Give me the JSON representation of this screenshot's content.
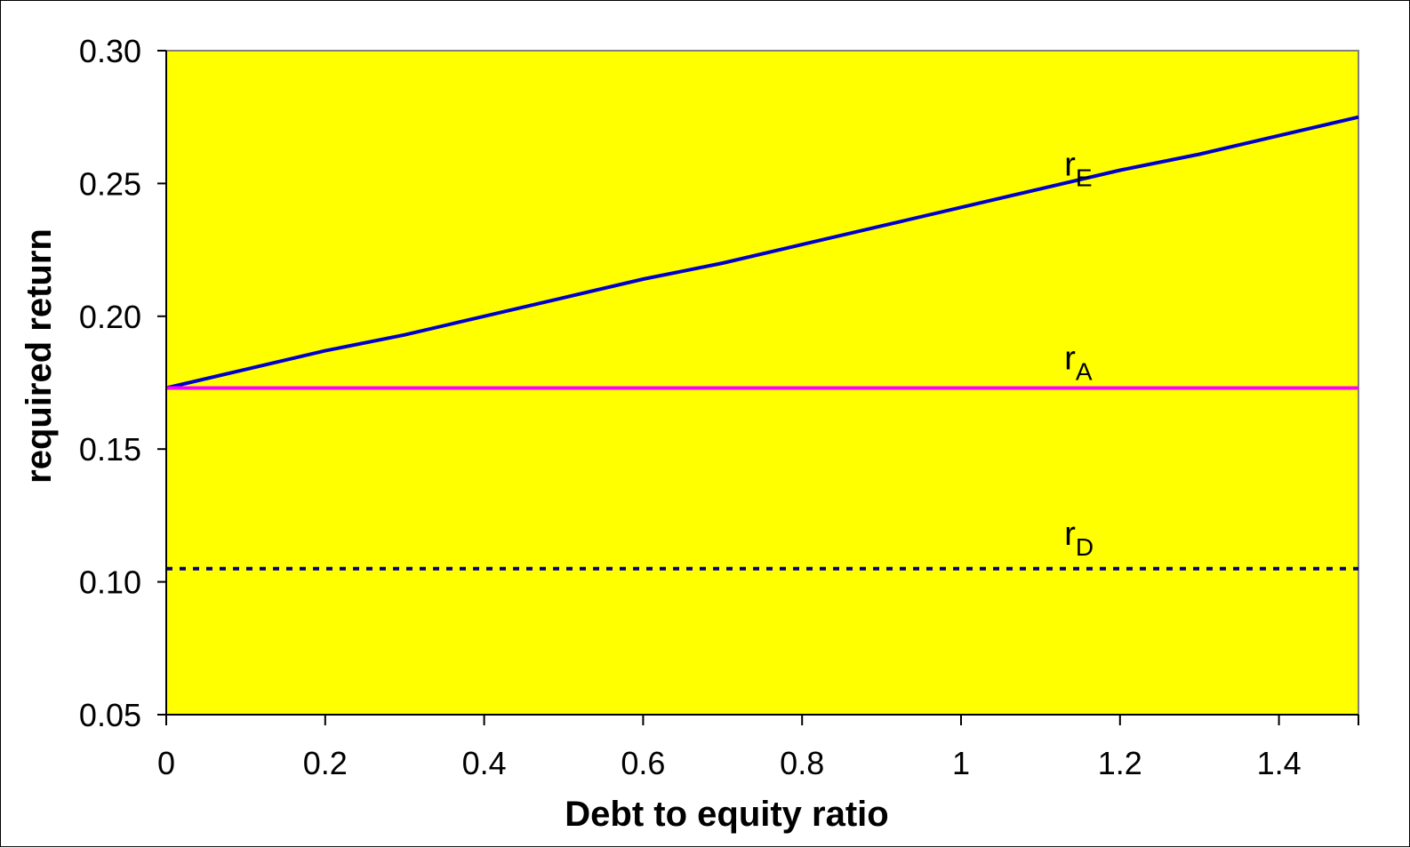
{
  "chart_data": {
    "type": "line",
    "title": "",
    "xlabel": "Debt to equity ratio",
    "ylabel": "required return",
    "xlim": [
      0,
      1.5
    ],
    "ylim": [
      0.05,
      0.3
    ],
    "xticks": [
      "0",
      "0.2",
      "0.4",
      "0.6",
      "0.8",
      "1",
      "1.2",
      "1.4"
    ],
    "xtick_values": [
      0,
      0.2,
      0.4,
      0.6,
      0.8,
      1.0,
      1.2,
      1.4
    ],
    "yticks": [
      "0.05",
      "0.10",
      "0.15",
      "0.20",
      "0.25",
      "0.30"
    ],
    "ytick_values": [
      0.05,
      0.1,
      0.15,
      0.2,
      0.25,
      0.3
    ],
    "grid": false,
    "plot_background": "#ffff00",
    "series": [
      {
        "name_main": "r",
        "name_sub": "E",
        "color": "#0000cc",
        "style": "solid",
        "x": [
          0,
          0.1,
          0.2,
          0.3,
          0.4,
          0.5,
          0.6,
          0.7,
          0.8,
          0.9,
          1.0,
          1.1,
          1.2,
          1.3,
          1.4,
          1.5
        ],
        "y": [
          0.173,
          0.18,
          0.187,
          0.193,
          0.2,
          0.207,
          0.214,
          0.22,
          0.227,
          0.234,
          0.241,
          0.248,
          0.255,
          0.261,
          0.268,
          0.275
        ],
        "label_x": 1.13,
        "label_y": 0.253
      },
      {
        "name_main": "r",
        "name_sub": "A",
        "color": "#ff00ff",
        "style": "solid",
        "x": [
          0,
          1.5
        ],
        "y": [
          0.173,
          0.173
        ],
        "label_x": 1.13,
        "label_y": 0.18
      },
      {
        "name_main": "r",
        "name_sub": "D",
        "color": "#000080",
        "style": "dotted",
        "x": [
          0,
          1.5
        ],
        "y": [
          0.105,
          0.105
        ],
        "label_x": 1.13,
        "label_y": 0.114
      }
    ]
  }
}
